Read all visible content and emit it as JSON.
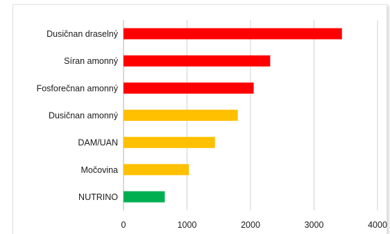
{
  "chart_data": {
    "type": "bar",
    "orientation": "horizontal",
    "categories": [
      "Dusičnan draselný",
      "Síran amonný",
      "Fosforečnan amonný",
      "Dusičnan amonný",
      "DAM/UAN",
      "Močovina",
      "NUTRINO"
    ],
    "values": [
      3440,
      2310,
      2050,
      1800,
      1440,
      1030,
      650
    ],
    "colors": [
      "#ff0000",
      "#ff0000",
      "#ff0000",
      "#ffc000",
      "#ffc000",
      "#ffc000",
      "#00b050"
    ],
    "xlim": [
      0,
      4000
    ],
    "xticks": [
      "0",
      "1000",
      "2000",
      "3000",
      "4000"
    ],
    "grid": "vertical",
    "legend": "none",
    "title": "",
    "xlabel": "",
    "ylabel": ""
  }
}
